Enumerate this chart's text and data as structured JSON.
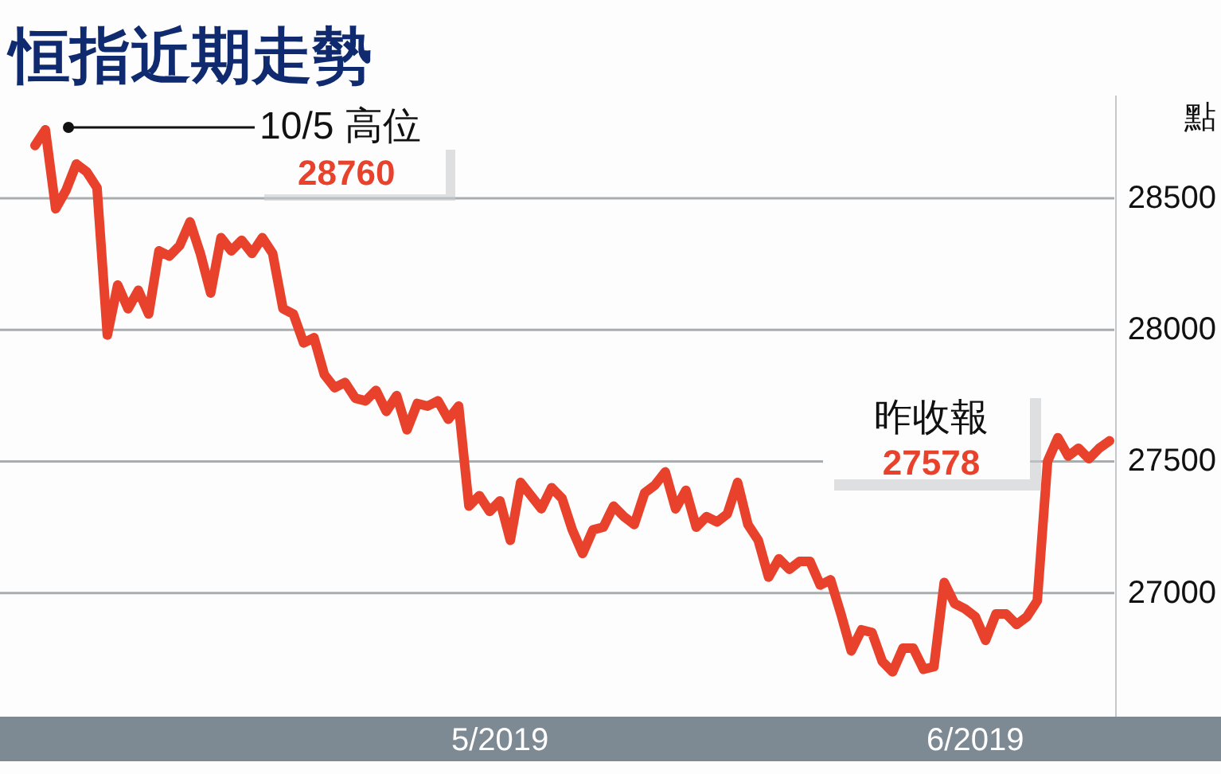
{
  "chart_data": {
    "type": "line",
    "title": "恒指近期走勢",
    "ylabel": "點",
    "categories": [
      null,
      null,
      null,
      null,
      null,
      null,
      null,
      null,
      null,
      null,
      null,
      null,
      null,
      null,
      null,
      null,
      null,
      null,
      null,
      null,
      null,
      null,
      null,
      null,
      null,
      null,
      null,
      null,
      null,
      null,
      null,
      null,
      null,
      null,
      null,
      null,
      null,
      null,
      null,
      null,
      null,
      null,
      null,
      null,
      null,
      "5/2019",
      null,
      null,
      null,
      null,
      null,
      null,
      null,
      null,
      null,
      null,
      null,
      null,
      null,
      null,
      null,
      null,
      null,
      null,
      null,
      null,
      null,
      null,
      null,
      null,
      null,
      null,
      null,
      null,
      null,
      null,
      null,
      null,
      null,
      null,
      null,
      null,
      null,
      null,
      null,
      null,
      null,
      null,
      null,
      null,
      null,
      "6/2019",
      null,
      null,
      null,
      null,
      null,
      null,
      null,
      null,
      null,
      null,
      null,
      null,
      null
    ],
    "series": [
      {
        "color": "#e8412c",
        "values": [
          28700,
          28760,
          28460,
          28530,
          28630,
          28600,
          28540,
          27980,
          28170,
          28080,
          28150,
          28060,
          28300,
          28280,
          28320,
          28410,
          28290,
          28140,
          28350,
          28300,
          28340,
          28290,
          28350,
          28290,
          28080,
          28060,
          27950,
          27970,
          27830,
          27780,
          27800,
          27740,
          27730,
          27770,
          27690,
          27750,
          27620,
          27720,
          27710,
          27730,
          27660,
          27710,
          27330,
          27370,
          27310,
          27350,
          27200,
          27420,
          27370,
          27320,
          27400,
          27360,
          27240,
          27150,
          27240,
          27250,
          27330,
          27290,
          27260,
          27380,
          27410,
          27460,
          27320,
          27390,
          27250,
          27290,
          27270,
          27300,
          27420,
          27260,
          27200,
          27060,
          27130,
          27090,
          27120,
          27120,
          27030,
          27050,
          26920,
          26780,
          26860,
          26850,
          26740,
          26700,
          26790,
          26790,
          26710,
          26720,
          27040,
          26960,
          26940,
          26910,
          26820,
          26920,
          26920,
          26880,
          26910,
          26970,
          27500,
          27590,
          27520,
          27550,
          27510,
          27550,
          27578
        ]
      }
    ],
    "ylim": [
      26530,
      28890
    ],
    "yticks": [
      27000,
      27500,
      28000,
      28500
    ],
    "grid": "y",
    "line_style": "solid",
    "marker": "none",
    "annotations": [
      "10/5 高位",
      "28760",
      "昨收報",
      "27578"
    ]
  }
}
